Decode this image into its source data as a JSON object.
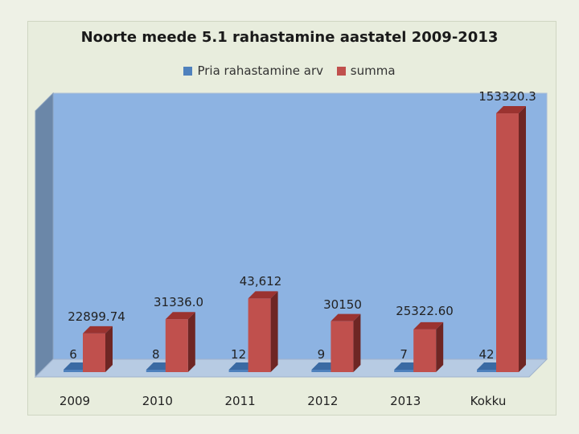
{
  "chart_data": {
    "type": "bar",
    "title": "Noorte meede 5.1 rahastamine aastatel 2009-2013",
    "categories": [
      "2009",
      "2010",
      "2011",
      "2012",
      "2013",
      "Kokku"
    ],
    "series": [
      {
        "name": "Pria rahastamine arv",
        "color": "#4f81bd",
        "values": [
          6,
          8,
          12,
          9,
          7,
          42
        ],
        "labels": [
          "6",
          "8",
          "12",
          "9",
          "7",
          "42"
        ]
      },
      {
        "name": "summa",
        "color": "#c0504d",
        "values": [
          22899.74,
          31336.0,
          43612,
          30150,
          25322.6,
          153320.3
        ],
        "labels": [
          "22899.74",
          "31336.0",
          "43,612",
          "30150",
          "25322.60",
          "153320.3"
        ]
      }
    ],
    "legend_position": "top",
    "ylim": [
      0,
      160000
    ],
    "grid": false
  }
}
